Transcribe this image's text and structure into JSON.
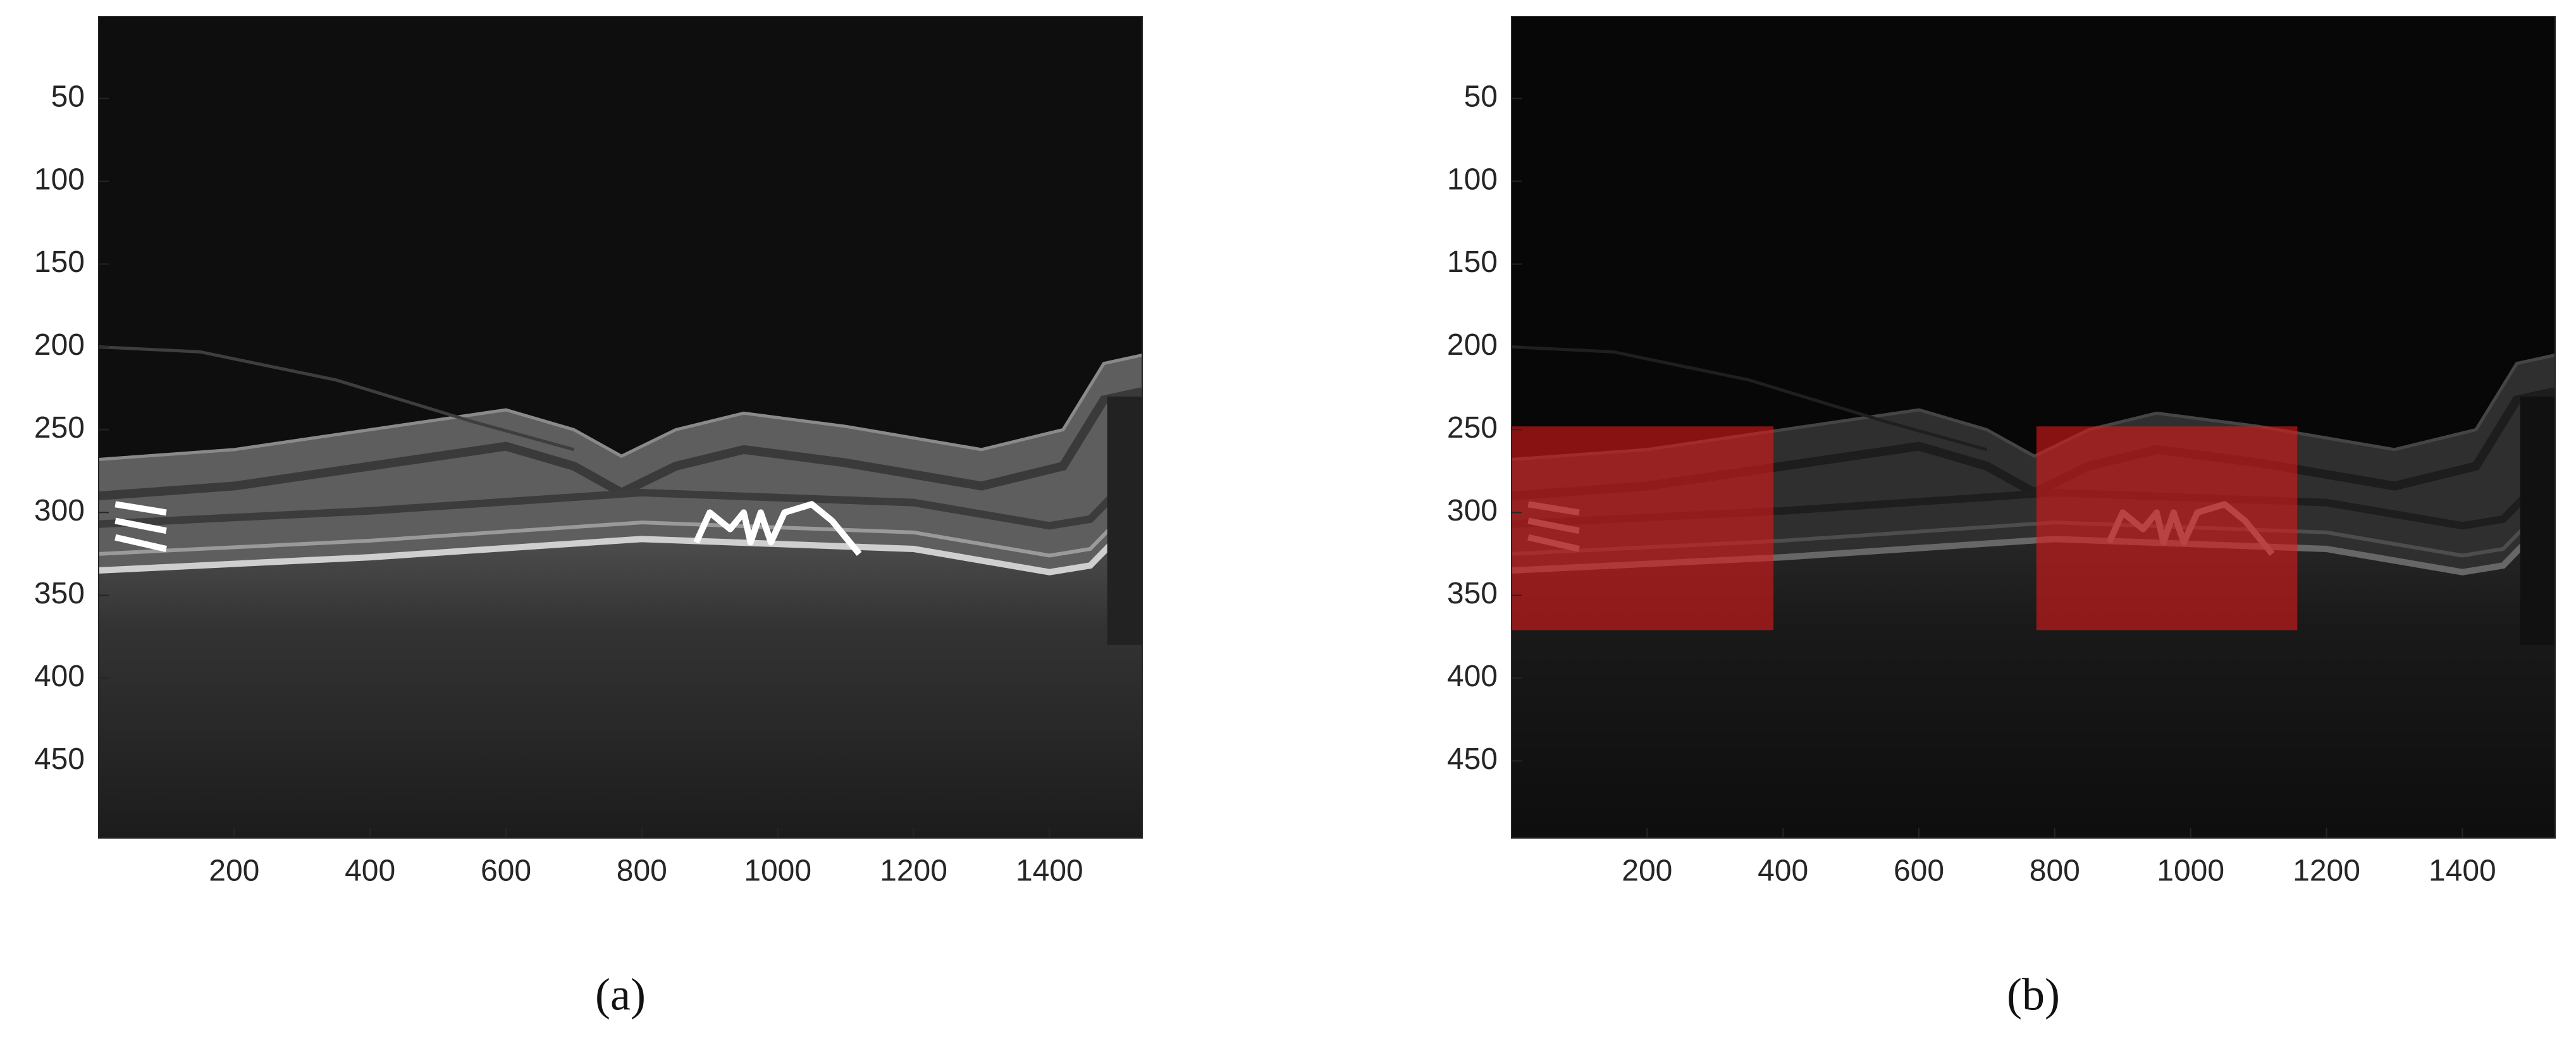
{
  "chart_data": [
    {
      "type": "image",
      "caption": "(a)",
      "xlim": [
        0.5,
        1536.5
      ],
      "ylim": [
        0.5,
        496.5
      ],
      "y_reversed": true,
      "xticks": [
        200,
        400,
        600,
        800,
        1000,
        1200,
        1400
      ],
      "yticks": [
        50,
        100,
        150,
        200,
        250,
        300,
        350,
        400,
        450
      ]
    },
    {
      "type": "image",
      "caption": "(b)",
      "xlim": [
        0.5,
        1536.5
      ],
      "ylim": [
        0.5,
        496.5
      ],
      "y_reversed": true,
      "xticks": [
        200,
        400,
        600,
        800,
        1000,
        1200,
        1400
      ],
      "yticks": [
        50,
        100,
        150,
        200,
        250,
        300,
        350,
        400,
        450
      ],
      "regions": [
        {
          "x": [
            0.5,
            386
          ],
          "y": [
            248,
            371
          ],
          "color": "#e0191b"
        },
        {
          "x": [
            773,
            1157
          ],
          "y": [
            248,
            371
          ],
          "color": "#e0191b"
        }
      ]
    }
  ]
}
